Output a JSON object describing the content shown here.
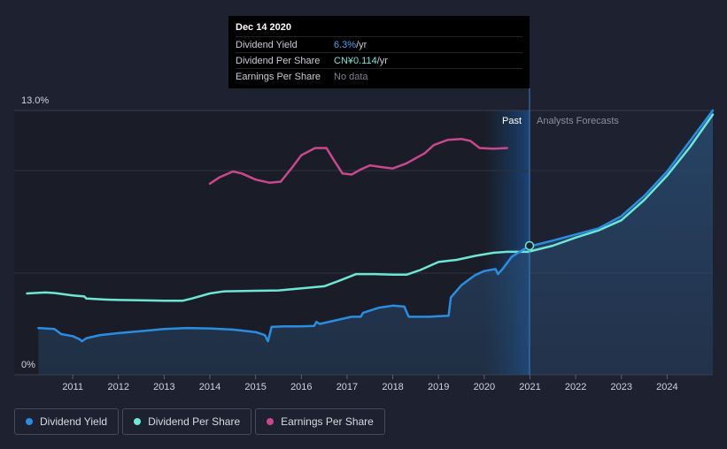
{
  "tooltip": {
    "date": "Dec 14 2020",
    "rows": [
      {
        "label": "Dividend Yield",
        "value": "6.3%",
        "unit": " /yr"
      },
      {
        "label": "Dividend Per Share",
        "value": "CN¥0.114",
        "unit": " /yr"
      },
      {
        "label": "Earnings Per Share",
        "value": "No data",
        "unit": ""
      }
    ]
  },
  "regions": {
    "past": "Past",
    "forecast": "Analysts Forecasts"
  },
  "legend": [
    {
      "label": "Dividend Yield",
      "color": "#2b8de0"
    },
    {
      "label": "Dividend Per Share",
      "color": "#6ee6d6"
    },
    {
      "label": "Earnings Per Share",
      "color": "#c8488e"
    }
  ],
  "chart_data": {
    "type": "line",
    "y_axis_labels": [
      "13.0%",
      "0%"
    ],
    "ylim": [
      0,
      13
    ],
    "xlim": [
      2010.0,
      2025.0
    ],
    "divider_x": 2020.96,
    "x_ticks": [
      2011,
      2012,
      2013,
      2014,
      2015,
      2016,
      2017,
      2018,
      2019,
      2020,
      2021,
      2022,
      2023,
      2024
    ],
    "series": [
      {
        "name": "Dividend Yield",
        "color": "#2b8de0",
        "unit": "%",
        "points": [
          [
            2010.25,
            2.3
          ],
          [
            2010.6,
            2.25
          ],
          [
            2010.75,
            2.0
          ],
          [
            2011.0,
            1.9
          ],
          [
            2011.15,
            1.75
          ],
          [
            2011.2,
            1.65
          ],
          [
            2011.3,
            1.8
          ],
          [
            2011.6,
            1.95
          ],
          [
            2012.0,
            2.05
          ],
          [
            2012.5,
            2.15
          ],
          [
            2013.0,
            2.25
          ],
          [
            2013.5,
            2.3
          ],
          [
            2014.0,
            2.28
          ],
          [
            2014.5,
            2.22
          ],
          [
            2015.0,
            2.1
          ],
          [
            2015.2,
            1.95
          ],
          [
            2015.27,
            1.65
          ],
          [
            2015.35,
            2.35
          ],
          [
            2015.6,
            2.38
          ],
          [
            2016.0,
            2.38
          ],
          [
            2016.28,
            2.4
          ],
          [
            2016.33,
            2.6
          ],
          [
            2016.4,
            2.5
          ],
          [
            2016.8,
            2.7
          ],
          [
            2017.1,
            2.85
          ],
          [
            2017.3,
            2.85
          ],
          [
            2017.35,
            3.05
          ],
          [
            2017.7,
            3.3
          ],
          [
            2018.0,
            3.4
          ],
          [
            2018.25,
            3.35
          ],
          [
            2018.35,
            2.85
          ],
          [
            2018.6,
            2.85
          ],
          [
            2018.8,
            2.85
          ],
          [
            2019.0,
            2.88
          ],
          [
            2019.22,
            2.9
          ],
          [
            2019.27,
            3.8
          ],
          [
            2019.5,
            4.4
          ],
          [
            2019.8,
            4.9
          ],
          [
            2020.0,
            5.1
          ],
          [
            2020.25,
            5.2
          ],
          [
            2020.3,
            4.95
          ],
          [
            2020.4,
            5.2
          ],
          [
            2020.6,
            5.8
          ],
          [
            2020.96,
            6.3
          ]
        ]
      },
      {
        "name": "Dividend Yield (forecast)",
        "color": "#2b8de0",
        "unit": "%",
        "points": [
          [
            2020.96,
            6.3
          ],
          [
            2021.5,
            6.6
          ],
          [
            2022.0,
            6.9
          ],
          [
            2022.5,
            7.2
          ],
          [
            2023.0,
            7.8
          ],
          [
            2023.5,
            8.8
          ],
          [
            2024.0,
            10.0
          ],
          [
            2024.5,
            11.5
          ],
          [
            2025.0,
            13.0
          ]
        ]
      },
      {
        "name": "Dividend Per Share",
        "color": "#6ee6d6",
        "unit": "scaled",
        "points": [
          [
            2010.0,
            4.0
          ],
          [
            2010.4,
            4.05
          ],
          [
            2010.6,
            4.02
          ],
          [
            2011.0,
            3.9
          ],
          [
            2011.25,
            3.85
          ],
          [
            2011.3,
            3.75
          ],
          [
            2011.7,
            3.7
          ],
          [
            2012.0,
            3.68
          ],
          [
            2012.5,
            3.66
          ],
          [
            2013.0,
            3.64
          ],
          [
            2013.4,
            3.64
          ],
          [
            2013.6,
            3.75
          ],
          [
            2014.0,
            4.0
          ],
          [
            2014.3,
            4.1
          ],
          [
            2015.0,
            4.13
          ],
          [
            2015.5,
            4.15
          ],
          [
            2016.0,
            4.25
          ],
          [
            2016.5,
            4.35
          ],
          [
            2016.8,
            4.6
          ],
          [
            2017.2,
            4.95
          ],
          [
            2017.6,
            4.95
          ],
          [
            2018.0,
            4.92
          ],
          [
            2018.3,
            4.92
          ],
          [
            2018.6,
            5.15
          ],
          [
            2019.0,
            5.55
          ],
          [
            2019.4,
            5.65
          ],
          [
            2019.8,
            5.85
          ],
          [
            2020.2,
            6.0
          ],
          [
            2020.5,
            6.05
          ],
          [
            2020.96,
            6.05
          ]
        ]
      },
      {
        "name": "Dividend Per Share (forecast)",
        "color": "#6ee6d6",
        "unit": "scaled",
        "points": [
          [
            2020.96,
            6.05
          ],
          [
            2021.5,
            6.35
          ],
          [
            2022.0,
            6.75
          ],
          [
            2022.5,
            7.1
          ],
          [
            2023.0,
            7.6
          ],
          [
            2023.5,
            8.6
          ],
          [
            2024.0,
            9.8
          ],
          [
            2024.5,
            11.2
          ],
          [
            2025.0,
            12.8
          ]
        ]
      },
      {
        "name": "Earnings Per Share",
        "color": "#c8488e",
        "unit": "scaled",
        "points": [
          [
            2014.0,
            9.4
          ],
          [
            2014.2,
            9.7
          ],
          [
            2014.5,
            10.0
          ],
          [
            2014.7,
            9.9
          ],
          [
            2015.0,
            9.6
          ],
          [
            2015.3,
            9.45
          ],
          [
            2015.55,
            9.5
          ],
          [
            2015.8,
            10.2
          ],
          [
            2016.0,
            10.8
          ],
          [
            2016.3,
            11.15
          ],
          [
            2016.55,
            11.15
          ],
          [
            2016.7,
            10.6
          ],
          [
            2016.9,
            9.9
          ],
          [
            2017.1,
            9.85
          ],
          [
            2017.3,
            10.1
          ],
          [
            2017.5,
            10.3
          ],
          [
            2017.8,
            10.2
          ],
          [
            2018.0,
            10.15
          ],
          [
            2018.3,
            10.4
          ],
          [
            2018.7,
            10.9
          ],
          [
            2018.9,
            11.3
          ],
          [
            2019.2,
            11.55
          ],
          [
            2019.5,
            11.6
          ],
          [
            2019.7,
            11.5
          ],
          [
            2019.9,
            11.15
          ],
          [
            2020.2,
            11.12
          ],
          [
            2020.5,
            11.15
          ]
        ]
      }
    ]
  }
}
